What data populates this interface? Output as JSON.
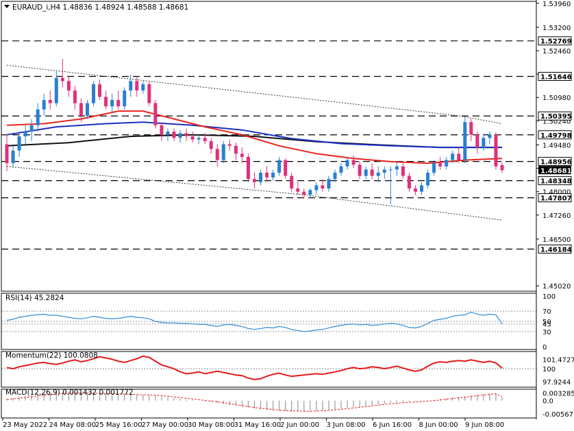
{
  "chart_data": {
    "type": "candlestick",
    "symbol_header": "EURAUD_i,H4  1.48836 1.48924 1.48588 1.48681",
    "price_ticks": [
      "1.53960",
      "1.53200",
      "1.52460",
      "1.51720",
      "1.50980",
      "1.50240",
      "1.49480",
      "1.48740",
      "1.48000",
      "1.47260",
      "1.46500",
      "1.45020"
    ],
    "price_levels": [
      {
        "label": "1.52769",
        "value": 1.52769,
        "style": "dashed"
      },
      {
        "label": "1.51646",
        "value": 1.51646,
        "style": "dashed"
      },
      {
        "label": "1.50395",
        "value": 1.50395,
        "style": "dashed"
      },
      {
        "label": "1.49798",
        "value": 1.49798,
        "style": "dashed"
      },
      {
        "label": "1.48956",
        "value": 1.48956,
        "style": "dashed"
      },
      {
        "label": "1.48681",
        "value": 1.48681,
        "style": "current"
      },
      {
        "label": "1.48348",
        "value": 1.48348,
        "style": "dashed"
      },
      {
        "label": "1.47807",
        "value": 1.47807,
        "style": "dashed"
      },
      {
        "label": "1.46184",
        "value": 1.46184,
        "style": "dashed"
      }
    ],
    "price_range": [
      1.4485,
      1.5402
    ],
    "x_labels": [
      "23 May 2022",
      "24 May 08:00",
      "25 May 16:00",
      "27 May 00:00",
      "30 May 08:00",
      "31 May 16:00",
      "2 Jun 00:00",
      "3 Jun 08:00",
      "6 Jun 16:00",
      "8 Jun 00:00",
      "9 Jun 08:00"
    ],
    "candles": [
      [
        1.495,
        1.4982,
        1.4865,
        1.489
      ],
      [
        1.489,
        1.4945,
        1.4875,
        1.493
      ],
      [
        1.493,
        1.499,
        1.491,
        1.4975
      ],
      [
        1.4975,
        1.501,
        1.495,
        1.499
      ],
      [
        1.499,
        1.503,
        1.496,
        1.501
      ],
      [
        1.501,
        1.508,
        1.499,
        1.506
      ],
      [
        1.506,
        1.511,
        1.504,
        1.509
      ],
      [
        1.509,
        1.512,
        1.506,
        1.508
      ],
      [
        1.508,
        1.518,
        1.507,
        1.516
      ],
      [
        1.516,
        1.522,
        1.513,
        1.515
      ],
      [
        1.515,
        1.5165,
        1.51,
        1.512
      ],
      [
        1.512,
        1.5135,
        1.506,
        1.508
      ],
      [
        1.508,
        1.5095,
        1.502,
        1.504
      ],
      [
        1.504,
        1.509,
        1.503,
        1.508
      ],
      [
        1.508,
        1.515,
        1.507,
        1.514
      ],
      [
        1.514,
        1.5155,
        1.509,
        1.51
      ],
      [
        1.51,
        1.512,
        1.506,
        1.507
      ],
      [
        1.507,
        1.511,
        1.505,
        1.509
      ],
      [
        1.509,
        1.512,
        1.506,
        1.507
      ],
      [
        1.507,
        1.513,
        1.506,
        1.512
      ],
      [
        1.512,
        1.517,
        1.51,
        1.515
      ],
      [
        1.515,
        1.5165,
        1.51,
        1.512
      ],
      [
        1.512,
        1.515,
        1.511,
        1.514
      ],
      [
        1.514,
        1.515,
        1.507,
        1.508
      ],
      [
        1.508,
        1.509,
        1.5,
        1.501
      ],
      [
        1.501,
        1.502,
        1.496,
        1.498
      ],
      [
        1.498,
        1.5,
        1.496,
        1.499
      ],
      [
        1.499,
        1.5,
        1.496,
        1.497
      ],
      [
        1.497,
        1.4995,
        1.4955,
        1.4985
      ],
      [
        1.4985,
        1.5,
        1.496,
        1.4975
      ],
      [
        1.4975,
        1.499,
        1.4955,
        1.4965
      ],
      [
        1.4965,
        1.498,
        1.495,
        1.497
      ],
      [
        1.497,
        1.4985,
        1.495,
        1.496
      ],
      [
        1.496,
        1.497,
        1.492,
        1.4935
      ],
      [
        1.4935,
        1.495,
        1.488,
        1.49
      ],
      [
        1.49,
        1.496,
        1.489,
        1.495
      ],
      [
        1.495,
        1.4965,
        1.493,
        1.4945
      ],
      [
        1.4945,
        1.4955,
        1.49,
        1.492
      ],
      [
        1.492,
        1.494,
        1.489,
        1.491
      ],
      [
        1.491,
        1.492,
        1.483,
        1.484
      ],
      [
        1.484,
        1.486,
        1.481,
        1.483
      ],
      [
        1.483,
        1.487,
        1.482,
        1.486
      ],
      [
        1.486,
        1.488,
        1.483,
        1.4845
      ],
      [
        1.4845,
        1.487,
        1.4835,
        1.486
      ],
      [
        1.486,
        1.491,
        1.485,
        1.49
      ],
      [
        1.49,
        1.4905,
        1.484,
        1.485
      ],
      [
        1.485,
        1.486,
        1.48,
        1.481
      ],
      [
        1.481,
        1.483,
        1.479,
        1.48
      ],
      [
        1.48,
        1.481,
        1.478,
        1.479
      ],
      [
        1.479,
        1.481,
        1.478,
        1.4805
      ],
      [
        1.4805,
        1.483,
        1.479,
        1.482
      ],
      [
        1.482,
        1.484,
        1.48,
        1.481
      ],
      [
        1.481,
        1.485,
        1.48,
        1.484
      ],
      [
        1.484,
        1.487,
        1.483,
        1.486
      ],
      [
        1.486,
        1.489,
        1.485,
        1.488
      ],
      [
        1.488,
        1.491,
        1.487,
        1.49
      ],
      [
        1.49,
        1.4915,
        1.4875,
        1.4885
      ],
      [
        1.4885,
        1.4895,
        1.484,
        1.485
      ],
      [
        1.485,
        1.488,
        1.484,
        1.487
      ],
      [
        1.487,
        1.489,
        1.484,
        1.485
      ],
      [
        1.485,
        1.488,
        1.483,
        1.486
      ],
      [
        1.486,
        1.488,
        1.484,
        1.487
      ],
      [
        1.487,
        1.488,
        1.476,
        1.487
      ],
      [
        1.487,
        1.4895,
        1.485,
        1.488
      ],
      [
        1.488,
        1.489,
        1.484,
        1.485
      ],
      [
        1.485,
        1.486,
        1.48,
        1.481
      ],
      [
        1.481,
        1.482,
        1.479,
        1.48
      ],
      [
        1.48,
        1.483,
        1.479,
        1.482
      ],
      [
        1.482,
        1.487,
        1.481,
        1.486
      ],
      [
        1.486,
        1.49,
        1.485,
        1.489
      ],
      [
        1.489,
        1.491,
        1.487,
        1.488
      ],
      [
        1.488,
        1.491,
        1.487,
        1.49
      ],
      [
        1.49,
        1.493,
        1.489,
        1.492
      ],
      [
        1.492,
        1.494,
        1.489,
        1.49
      ],
      [
        1.49,
        1.5035,
        1.489,
        1.502
      ],
      [
        1.502,
        1.503,
        1.496,
        1.498
      ],
      [
        1.498,
        1.499,
        1.492,
        1.494
      ],
      [
        1.494,
        1.4985,
        1.493,
        1.497
      ],
      [
        1.497,
        1.499,
        1.495,
        1.498
      ],
      [
        1.498,
        1.4988,
        1.487,
        1.488
      ],
      [
        1.4884,
        1.4892,
        1.4859,
        1.4868
      ]
    ],
    "ma_black": {
      "name": "MA black",
      "points": [
        [
          0,
          1.4945
        ],
        [
          10,
          1.4955
        ],
        [
          20,
          1.4975
        ],
        [
          30,
          1.498
        ],
        [
          40,
          1.4975
        ],
        [
          50,
          1.4958
        ],
        [
          60,
          1.4948
        ],
        [
          70,
          1.494
        ],
        [
          80,
          1.494
        ]
      ]
    },
    "ma_blue": {
      "name": "MA blue",
      "points": [
        [
          0,
          1.498
        ],
        [
          8,
          1.5005
        ],
        [
          16,
          1.5015
        ],
        [
          22,
          1.502
        ],
        [
          30,
          1.501
        ],
        [
          38,
          1.4995
        ],
        [
          46,
          1.4968
        ],
        [
          54,
          1.4952
        ],
        [
          62,
          1.4945
        ],
        [
          70,
          1.494
        ],
        [
          76,
          1.494
        ],
        [
          80,
          1.494
        ]
      ]
    },
    "ma_red": {
      "name": "MA red",
      "points": [
        [
          0,
          1.501
        ],
        [
          6,
          1.5015
        ],
        [
          12,
          1.503
        ],
        [
          18,
          1.5055
        ],
        [
          22,
          1.5055
        ],
        [
          26,
          1.5035
        ],
        [
          32,
          1.5005
        ],
        [
          38,
          1.498
        ],
        [
          44,
          1.4945
        ],
        [
          50,
          1.492
        ],
        [
          56,
          1.4905
        ],
        [
          62,
          1.4895
        ],
        [
          68,
          1.489
        ],
        [
          74,
          1.49
        ],
        [
          80,
          1.4905
        ]
      ]
    },
    "channel_upper": {
      "points": [
        [
          0,
          1.52
        ],
        [
          73,
          1.504
        ],
        [
          80,
          1.5015
        ]
      ]
    },
    "channel_lower": {
      "points": [
        [
          0,
          1.488
        ],
        [
          48,
          1.479
        ],
        [
          80,
          1.471
        ]
      ]
    },
    "rsi": {
      "header": "RSI(14) 45.2824",
      "ticks": [
        "100",
        "70",
        "50",
        "45",
        "30",
        "0"
      ],
      "levels": [
        70,
        50,
        45,
        30
      ],
      "range": [
        0,
        100
      ],
      "values": [
        52,
        54,
        58,
        60,
        62,
        63,
        64,
        62,
        62,
        60,
        58,
        56,
        55,
        57,
        60,
        58,
        56,
        55,
        56,
        58,
        60,
        58,
        57,
        55,
        50,
        48,
        47,
        47,
        46,
        46,
        45,
        44,
        44,
        42,
        40,
        43,
        44,
        42,
        40,
        36,
        34,
        36,
        38,
        37,
        40,
        38,
        34,
        32,
        30,
        31,
        33,
        34,
        37,
        40,
        42,
        44,
        45,
        43,
        44,
        42,
        43,
        45,
        46,
        45,
        42,
        38,
        37,
        40,
        46,
        52,
        54,
        56,
        60,
        62,
        63,
        68,
        64,
        62,
        64,
        63,
        45
      ]
    },
    "momentum": {
      "header": "Momentum(22) 100.0808",
      "ticks": [
        "101.4727",
        "100",
        "97.9244"
      ],
      "levels": [
        100
      ],
      "range": [
        97.5,
        102.3
      ],
      "values": [
        100.2,
        100.0,
        100.3,
        100.5,
        100.7,
        100.9,
        101.0,
        100.8,
        100.7,
        100.9,
        101.2,
        101.4,
        101.1,
        101.3,
        101.6,
        101.9,
        101.7,
        101.5,
        101.2,
        101.0,
        101.3,
        101.6,
        102.0,
        101.8,
        101.2,
        100.6,
        100.3,
        100.0,
        99.5,
        99.2,
        99.3,
        99.5,
        99.2,
        99.4,
        99.6,
        99.4,
        99.2,
        99.0,
        98.9,
        98.5,
        98.3,
        98.4,
        98.8,
        99.1,
        99.3,
        99.0,
        98.8,
        98.9,
        99.0,
        99.1,
        99.2,
        99.1,
        99.3,
        99.5,
        99.7,
        100.0,
        100.2,
        100.0,
        100.1,
        100.3,
        100.2,
        100.0,
        100.2,
        100.4,
        100.1,
        99.8,
        99.6,
        99.8,
        100.4,
        100.9,
        101.1,
        101.0,
        101.2,
        101.3,
        101.2,
        101.4,
        101.2,
        101.0,
        101.2,
        100.9,
        100.1
      ]
    },
    "macd": {
      "header": "MACD(12,26,9) 0.001432 0.001772",
      "ticks": [
        "0.003285",
        "0.0",
        "-0.005677"
      ],
      "range": [
        -0.0062,
        0.0037
      ],
      "histogram": [
        0.0008,
        0.001,
        0.0014,
        0.0018,
        0.0022,
        0.0026,
        0.003,
        0.0033,
        0.0035,
        0.0036,
        0.0036,
        0.0035,
        0.0034,
        0.0033,
        0.0032,
        0.0031,
        0.003,
        0.0029,
        0.0028,
        0.0027,
        0.0026,
        0.0025,
        0.0024,
        0.0022,
        0.002,
        0.0017,
        0.0014,
        0.0011,
        0.0008,
        0.0005,
        0.0002,
        0.0,
        -0.0003,
        -0.0006,
        -0.001,
        -0.0014,
        -0.0018,
        -0.0022,
        -0.0026,
        -0.003,
        -0.0034,
        -0.0037,
        -0.004,
        -0.0042,
        -0.0044,
        -0.0045,
        -0.0046,
        -0.0047,
        -0.0047,
        -0.0046,
        -0.0044,
        -0.0042,
        -0.004,
        -0.0037,
        -0.0034,
        -0.0031,
        -0.0028,
        -0.0025,
        -0.0022,
        -0.0019,
        -0.0016,
        -0.0013,
        -0.001,
        -0.0008,
        -0.0006,
        -0.0005,
        -0.0004,
        -0.0002,
        0.0,
        0.0003,
        0.0006,
        0.0009,
        0.0012,
        0.0015,
        0.0018,
        0.0022,
        0.0026,
        0.0029,
        0.0031,
        0.0032,
        0.0014
      ],
      "signal": [
        0.0005,
        0.0008,
        0.0011,
        0.0014,
        0.0017,
        0.002,
        0.0023,
        0.0026,
        0.0028,
        0.003,
        0.0031,
        0.0032,
        0.0032,
        0.0032,
        0.0032,
        0.0031,
        0.0031,
        0.003,
        0.0029,
        0.0028,
        0.0027,
        0.0026,
        0.0025,
        0.0024,
        0.0023,
        0.0021,
        0.0019,
        0.0016,
        0.0013,
        0.001,
        0.0007,
        0.0004,
        0.0001,
        -0.0002,
        -0.0005,
        -0.0009,
        -0.0013,
        -0.0017,
        -0.0021,
        -0.0025,
        -0.0029,
        -0.0032,
        -0.0035,
        -0.0038,
        -0.004,
        -0.0042,
        -0.0043,
        -0.0044,
        -0.0045,
        -0.0045,
        -0.0044,
        -0.0043,
        -0.0041,
        -0.0039,
        -0.0037,
        -0.0034,
        -0.0031,
        -0.0028,
        -0.0025,
        -0.0022,
        -0.0019,
        -0.0016,
        -0.0013,
        -0.0011,
        -0.0009,
        -0.0007,
        -0.0006,
        -0.0004,
        -0.0002,
        0.0,
        0.0003,
        0.0006,
        0.0009,
        0.0012,
        0.0015,
        0.0018,
        0.0021,
        0.0024,
        0.0027,
        0.0029,
        0.0018
      ]
    }
  },
  "colors": {
    "bull": "#2a7fd0",
    "bear": "#e0307a",
    "ma_red": "#e8241c",
    "ma_blue": "#1a2fc0",
    "ma_black": "#111111",
    "rsi_line": "#2e8bd8",
    "momentum_line": "#e81818",
    "macd_line": "#e81818",
    "macd_hist": "#999999",
    "current_box": "#000000"
  }
}
